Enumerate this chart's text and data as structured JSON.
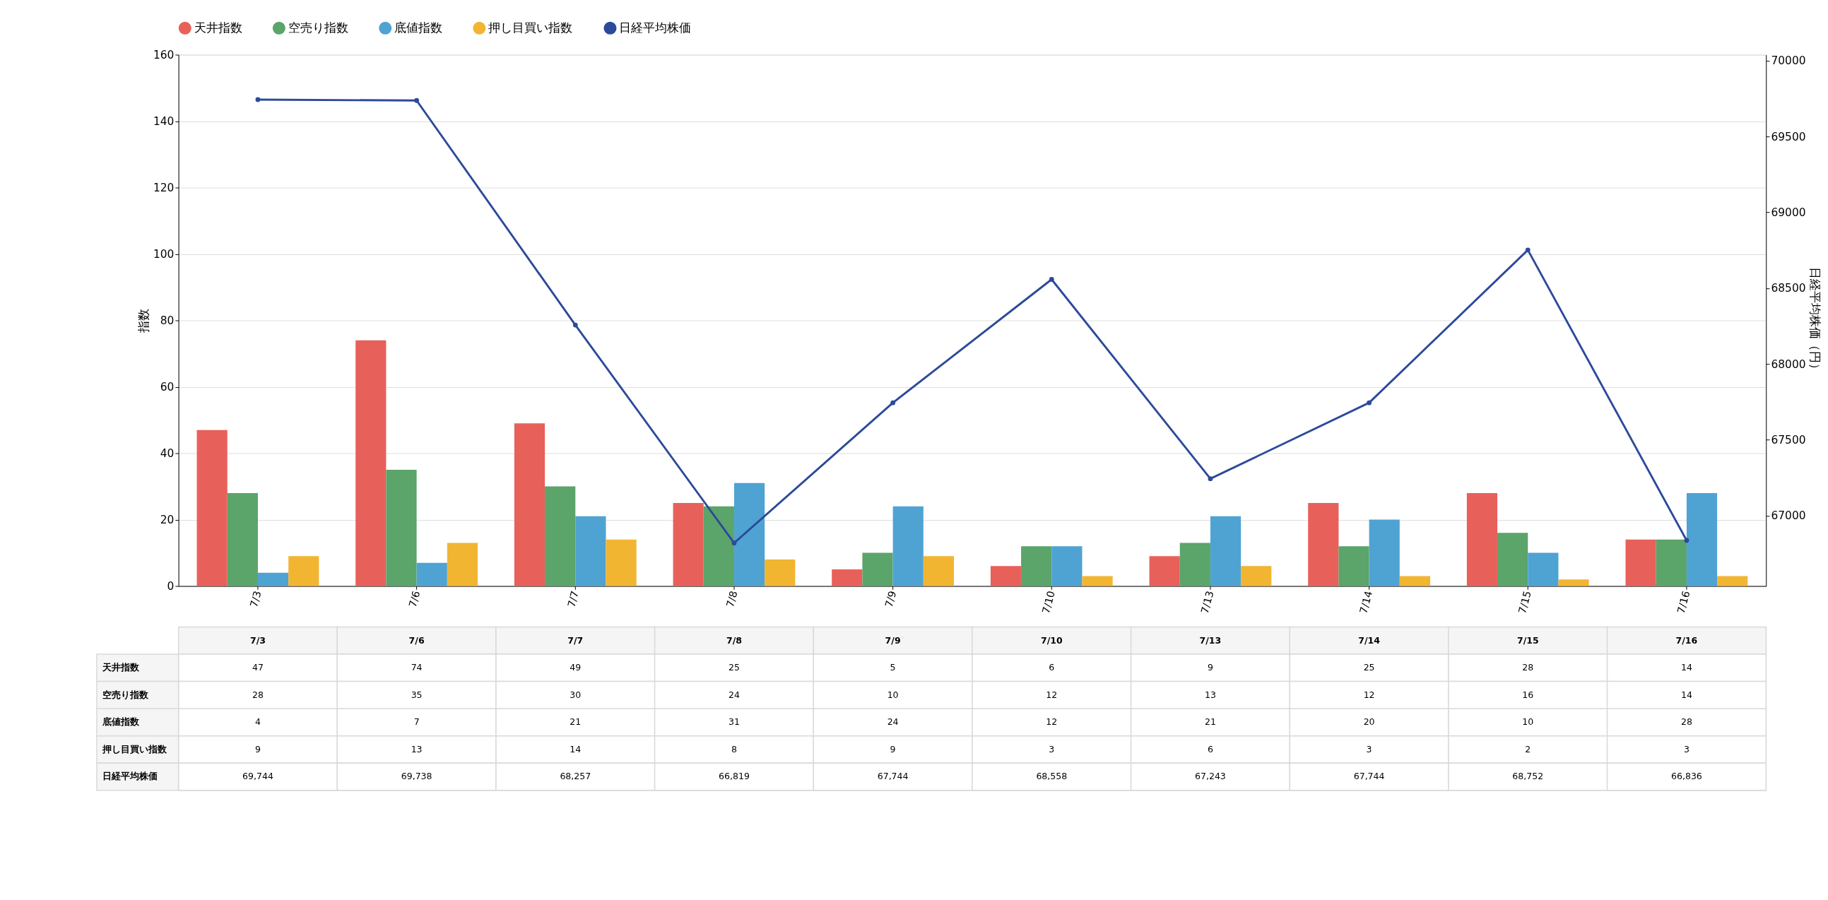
{
  "chart_data": {
    "type": "bar",
    "categories": [
      "7/3",
      "7/6",
      "7/7",
      "7/8",
      "7/9",
      "7/10",
      "7/13",
      "7/14",
      "7/15",
      "7/16"
    ],
    "ylabel": "指数",
    "y2label": "日経平均株価（円）",
    "series": [
      {
        "name": "天井指数",
        "color": "#e8605a",
        "values": [
          47,
          74,
          49,
          25,
          5,
          6,
          9,
          25,
          28,
          14
        ]
      },
      {
        "name": "空売り指数",
        "color": "#5ba46a",
        "values": [
          28,
          35,
          30,
          24,
          10,
          12,
          13,
          12,
          16,
          14
        ]
      },
      {
        "name": "底値指数",
        "color": "#4fa3d3",
        "values": [
          4,
          7,
          21,
          31,
          24,
          12,
          21,
          20,
          10,
          28
        ]
      },
      {
        "name": "押し目買い指数",
        "color": "#f2b532",
        "values": [
          9,
          13,
          14,
          8,
          9,
          3,
          6,
          3,
          2,
          3
        ]
      },
      {
        "name": "日経平均株価",
        "type": "line",
        "axis": "y2",
        "color": "#2c4a9a",
        "marker": "circle",
        "values": [
          69744,
          69738,
          68257,
          66819,
          67744,
          68558,
          67243,
          67744,
          68752,
          66836
        ],
        "value_labels": [
          "69,744",
          "69,738",
          "68,257",
          "66,819",
          "67,744",
          "68,558",
          "67,243",
          "67,744",
          "68,752",
          "66,836"
        ]
      }
    ],
    "ylim": [
      0,
      160
    ],
    "yticks": [
      0,
      20,
      40,
      60,
      80,
      100,
      120,
      140,
      160
    ],
    "y2lim": [
      66535,
      70040
    ],
    "y2ticks": [
      67000,
      67500,
      68000,
      68500,
      69000,
      69500,
      70000
    ],
    "grid": "y",
    "legend": "top",
    "data_labels": true
  }
}
